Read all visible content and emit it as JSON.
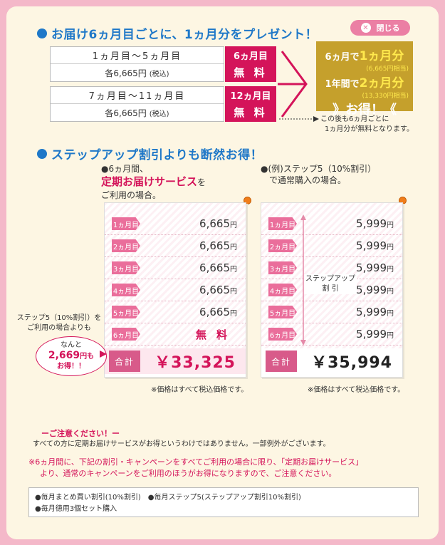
{
  "header": {
    "title": "お届け6ヵ月目ごとに、1ヵ月分をプレゼント！",
    "close_label": "閉じる"
  },
  "present": {
    "rows": [
      {
        "months": "1ヵ月目〜5ヵ月目",
        "price": "各6,665円",
        "tax": "(税込)",
        "badge_top": "6ヵ月目",
        "badge_bottom": "無 料"
      },
      {
        "months": "7ヵ月目〜11ヵ月目",
        "price": "各6,665円",
        "tax": "(税込)",
        "badge_top": "12ヵ月目",
        "badge_bottom": "無 料"
      }
    ],
    "gold": {
      "line1_pre": "6ヵ月で",
      "line1_big": "1ヵ月分",
      "line1_note": "(6,665円相当)",
      "line2_pre": "1年間で",
      "line2_big": "2ヵ月分",
      "line2_note": "(13,330円相当)",
      "otoku": "》お得！《"
    },
    "after_note_1": "この後も6ヵ月ごとに",
    "after_note_2": "1ヵ月分が無料となります。"
  },
  "compare": {
    "title": "ステップアップ割引よりも断然お得！",
    "left": {
      "intro1": "●6ヵ月間、",
      "intro2": "定期お届けサービス",
      "intro2_suffix": "を",
      "intro3": "ご利用の場合。",
      "rows": [
        {
          "label": "1ヵ月目",
          "price": "6,665",
          "unit": "円"
        },
        {
          "label": "2ヵ月目",
          "price": "6,665",
          "unit": "円"
        },
        {
          "label": "3ヵ月目",
          "price": "6,665",
          "unit": "円"
        },
        {
          "label": "4ヵ月目",
          "price": "6,665",
          "unit": "円"
        },
        {
          "label": "5ヵ月目",
          "price": "6,665",
          "unit": "円"
        }
      ],
      "last_label": "6ヵ月目",
      "last_value": "無料",
      "total_label": "合計",
      "total_value": "￥33,325",
      "tax_note": "※価格はすべて税込価格です。"
    },
    "right": {
      "intro1": "●(例)ステップ5（10%割引）",
      "intro2": "で通常購入の場合。",
      "rows": [
        {
          "label": "1ヵ月目",
          "price": "5,999",
          "unit": "円"
        },
        {
          "label": "2ヵ月目",
          "price": "5,999",
          "unit": "円"
        },
        {
          "label": "3ヵ月目",
          "price": "5,999",
          "unit": "円"
        },
        {
          "label": "4ヵ月目",
          "price": "5,999",
          "unit": "円"
        },
        {
          "label": "5ヵ月目",
          "price": "5,999",
          "unit": "円"
        },
        {
          "label": "6ヵ月目",
          "price": "5,999",
          "unit": "円"
        }
      ],
      "step_label_1": "ステップアップ",
      "step_label_2": "割 引",
      "total_label": "合計",
      "total_value": "￥35,994",
      "tax_note": "※価格はすべて税込価格です。"
    },
    "side_note_1": "ステップ5（10%割引）を",
    "side_note_2": "ご利用の場合よりも",
    "bubble_1": "なんと",
    "bubble_2": "2,669",
    "bubble_2_unit": "円も",
    "bubble_3": "お得！！"
  },
  "caution": {
    "heading": "ーご注意ください！ー",
    "text": "すべての方に定期お届けサービスがお得というわけではありません。一部例外がございます。",
    "red1": "※6ヵ月間に、下記の割引・キャンペーンをすべてご利用の場合に限り、「定期お届けサービス」",
    "red2": "より、通常のキャンペーンをご利用のほうがお得になりますので、ご注意ください。",
    "list_1": "●毎月まとめ買い割引(10%割引)　●毎月ステップ5(ステップアップ割引10%割引)",
    "list_2": "●毎月徳用3個セット購入"
  }
}
